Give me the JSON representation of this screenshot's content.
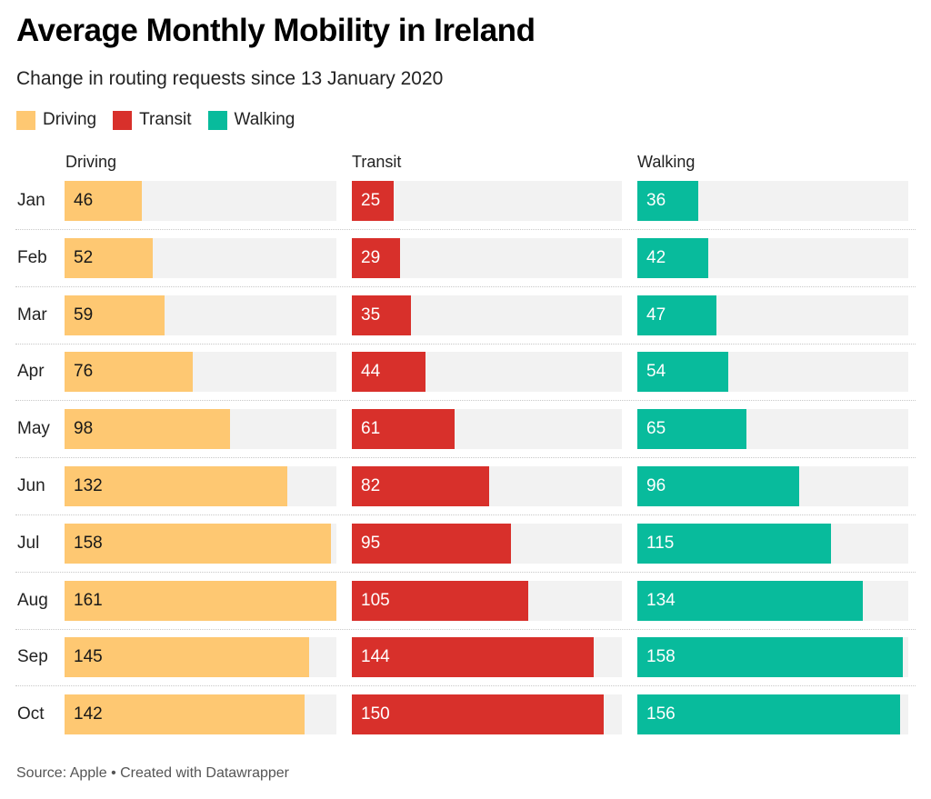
{
  "chart_data": {
    "type": "bar",
    "orientation": "horizontal",
    "layout": "small-multiples",
    "title": "Average Monthly Mobility in Ireland",
    "subtitle": "Change in routing requests since 13 January 2020",
    "categories": [
      "Jan",
      "Feb",
      "Mar",
      "Apr",
      "May",
      "Jun",
      "Jul",
      "Aug",
      "Sep",
      "Oct"
    ],
    "series": [
      {
        "name": "Driving",
        "color": "#fec872",
        "label_color": "#181818",
        "values": [
          46,
          52,
          59,
          76,
          98,
          132,
          158,
          161,
          145,
          142
        ]
      },
      {
        "name": "Transit",
        "color": "#d8302b",
        "label_color": "#ffffff",
        "values": [
          25,
          29,
          35,
          44,
          61,
          82,
          95,
          105,
          144,
          150
        ]
      },
      {
        "name": "Walking",
        "color": "#08bb9c",
        "label_color": "#ffffff",
        "values": [
          36,
          42,
          47,
          54,
          65,
          96,
          115,
          134,
          158,
          156
        ]
      }
    ],
    "xlim": [
      0,
      161
    ],
    "legend": "top-left",
    "grid": false,
    "background_color": "#f2f2f2",
    "source": "Source: Apple • Created with Datawrapper"
  }
}
